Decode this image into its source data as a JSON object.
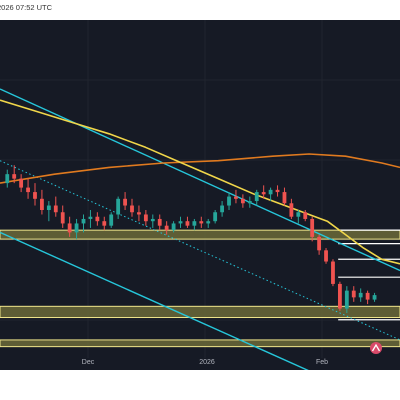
{
  "header": {
    "timestamp": "2026 07:52 UTC"
  },
  "colors": {
    "background": "#161a25",
    "grid": "#20242e",
    "up": "#26a69a",
    "down": "#ef5350",
    "channel": "#26c6da",
    "ma_short": "#f0d64a",
    "ma_long": "#e07a1f",
    "zone_fill": "#6b6a38",
    "zone_border": "#f0e68c",
    "level": "#ffffff",
    "axis_text": "#b2b5be",
    "logo": "#d94a6a"
  },
  "icons": {
    "logo": "tradingview-logo-icon"
  },
  "chart_data": {
    "type": "candlestick",
    "title": "",
    "xlabel": "",
    "ylabel": "",
    "grid": true,
    "x_tick_labels": [
      "Dec",
      "2026",
      "Feb"
    ],
    "x_range": [
      0,
      110
    ],
    "y_range": [
      0,
      100
    ],
    "candles_ohlc": [
      [
        62,
        68,
        60,
        66
      ],
      [
        66,
        70,
        62,
        64
      ],
      [
        64,
        66,
        58,
        60
      ],
      [
        60,
        64,
        55,
        58
      ],
      [
        58,
        62,
        52,
        55
      ],
      [
        55,
        59,
        48,
        50
      ],
      [
        50,
        54,
        45,
        52
      ],
      [
        52,
        56,
        47,
        49
      ],
      [
        49,
        52,
        42,
        44
      ],
      [
        44,
        47,
        38,
        40
      ],
      [
        40,
        46,
        37,
        44
      ],
      [
        44,
        48,
        40,
        46
      ],
      [
        46,
        50,
        42,
        47
      ],
      [
        47,
        49,
        43,
        45
      ],
      [
        45,
        47,
        41,
        43
      ],
      [
        43,
        49,
        42,
        48
      ],
      [
        48,
        56,
        46,
        55
      ],
      [
        55,
        58,
        50,
        52
      ],
      [
        52,
        55,
        47,
        49
      ],
      [
        49,
        52,
        45,
        48
      ],
      [
        48,
        50,
        43,
        45
      ],
      [
        45,
        48,
        42,
        46
      ],
      [
        46,
        48,
        41,
        43
      ],
      [
        43,
        45,
        39,
        41
      ],
      [
        41,
        45,
        40,
        44
      ],
      [
        44,
        47,
        42,
        45
      ],
      [
        45,
        47,
        42,
        43
      ],
      [
        43,
        46,
        41,
        45
      ],
      [
        45,
        47,
        42,
        44
      ],
      [
        44,
        46,
        42,
        45
      ],
      [
        45,
        50,
        44,
        49
      ],
      [
        49,
        54,
        47,
        52
      ],
      [
        52,
        58,
        50,
        56
      ],
      [
        56,
        59,
        53,
        55
      ],
      [
        55,
        57,
        51,
        53
      ],
      [
        53,
        56,
        51,
        54
      ],
      [
        54,
        59,
        52,
        58
      ],
      [
        58,
        61,
        55,
        57
      ],
      [
        57,
        60,
        54,
        59
      ],
      [
        59,
        61,
        56,
        58
      ],
      [
        58,
        60,
        52,
        53
      ],
      [
        53,
        55,
        46,
        47
      ],
      [
        47,
        50,
        44,
        49
      ],
      [
        49,
        50,
        45,
        46
      ],
      [
        46,
        47,
        36,
        38
      ],
      [
        38,
        39,
        30,
        32
      ],
      [
        32,
        33,
        26,
        27
      ],
      [
        27,
        28,
        16,
        17
      ],
      [
        17,
        18,
        5,
        6
      ],
      [
        6,
        16,
        4,
        14
      ],
      [
        14,
        16,
        9,
        11
      ],
      [
        11,
        15,
        9,
        13
      ],
      [
        13,
        14,
        8,
        10
      ],
      [
        10,
        13,
        9,
        12
      ]
    ],
    "ma_short": [
      [
        0,
        99
      ],
      [
        10,
        94
      ],
      [
        20,
        89
      ],
      [
        30,
        84
      ],
      [
        40,
        78
      ],
      [
        50,
        71
      ],
      [
        60,
        64
      ],
      [
        70,
        57
      ],
      [
        80,
        51
      ],
      [
        90,
        45
      ],
      [
        95,
        39
      ],
      [
        100,
        33
      ],
      [
        105,
        28
      ],
      [
        110,
        26
      ]
    ],
    "ma_long": [
      [
        0,
        62
      ],
      [
        15,
        66
      ],
      [
        30,
        69
      ],
      [
        45,
        71
      ],
      [
        60,
        72
      ],
      [
        75,
        74
      ],
      [
        85,
        75
      ],
      [
        95,
        74
      ],
      [
        105,
        71
      ],
      [
        110,
        69
      ]
    ],
    "channel_upper": [
      [
        0,
        104
      ],
      [
        110,
        23
      ]
    ],
    "channel_lower": [
      [
        0,
        40
      ],
      [
        110,
        -40
      ]
    ],
    "channel_mid": [
      [
        0,
        72
      ],
      [
        110,
        -8
      ]
    ],
    "zones": [
      [
        2,
        7
      ],
      [
        -11,
        -8
      ],
      [
        37,
        41
      ]
    ],
    "levels": [
      {
        "y": 28,
        "x_start": 93,
        "x_end": 110
      },
      {
        "y": 35,
        "x_start": 93,
        "x_end": 110
      },
      {
        "y": 41,
        "x_start": 93,
        "x_end": 110
      },
      {
        "y": 20,
        "x_start": 93,
        "x_end": 110
      },
      {
        "y": 1,
        "x_start": 93,
        "x_end": 110
      }
    ]
  }
}
